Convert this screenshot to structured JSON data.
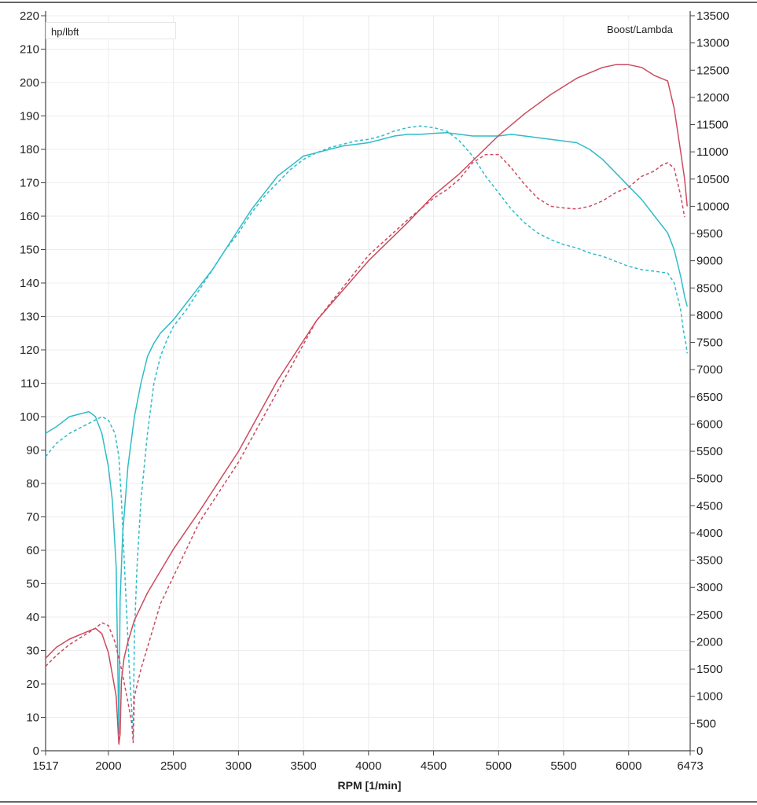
{
  "chart_data": {
    "type": "line",
    "xlabel": "RPM  [1/min]",
    "xlim": [
      1517,
      6473
    ],
    "x_ticks": [
      "1517",
      "2000",
      "2500",
      "3000",
      "3500",
      "4000",
      "4500",
      "5000",
      "5500",
      "6000",
      "6473"
    ],
    "y_left_label": "hp/lbft",
    "ylim_left": [
      0,
      220
    ],
    "y_left_ticks": [
      "0",
      "10",
      "20",
      "30",
      "40",
      "50",
      "60",
      "70",
      "80",
      "90",
      "100",
      "110",
      "120",
      "130",
      "140",
      "150",
      "160",
      "170",
      "180",
      "190",
      "200",
      "210",
      "220"
    ],
    "y_right_label": "Boost/Lambda",
    "ylim_right": [
      0,
      13500
    ],
    "y_right_ticks": [
      "0",
      "500",
      "1000",
      "1500",
      "2000",
      "2500",
      "3000",
      "3500",
      "4000",
      "4500",
      "5000",
      "5500",
      "6000",
      "6500",
      "7000",
      "7500",
      "8000",
      "8500",
      "9000",
      "9500",
      "10000",
      "10500",
      "11000",
      "11500",
      "12000",
      "12500",
      "13000",
      "13500"
    ],
    "grid": true,
    "series": [
      {
        "color": "#2fbcc8",
        "dash": "solid",
        "x": [
          1517,
          1600,
          1700,
          1850,
          1900,
          1950,
          2000,
          2030,
          2060,
          2080,
          2090,
          2110,
          2150,
          2200,
          2250,
          2300,
          2350,
          2400,
          2500,
          2600,
          2700,
          2800,
          2900,
          3000,
          3100,
          3200,
          3300,
          3400,
          3500,
          3600,
          3700,
          3800,
          3900,
          4000,
          4100,
          4200,
          4300,
          4400,
          4500,
          4600,
          4700,
          4800,
          4900,
          5000,
          5100,
          5200,
          5300,
          5400,
          5500,
          5600,
          5700,
          5800,
          5900,
          6000,
          6100,
          6200,
          6300,
          6350,
          6400,
          6430,
          6450
        ],
        "y": [
          95,
          97,
          100,
          101.5,
          100,
          95,
          85,
          75,
          55,
          5,
          45,
          65,
          85,
          100,
          110,
          118,
          122,
          125,
          129,
          134,
          139,
          144,
          150,
          156,
          162,
          167,
          172,
          175,
          178,
          179,
          180,
          181,
          181.5,
          182,
          183,
          184,
          184.5,
          184.5,
          184.8,
          185,
          184.5,
          184,
          184,
          184,
          184.5,
          184,
          183.5,
          183,
          182.5,
          182,
          180,
          177,
          173,
          169,
          165,
          160,
          155,
          150,
          142,
          136,
          133
        ]
      },
      {
        "color": "#2fbcc8",
        "dash": "dashed",
        "x": [
          1517,
          1600,
          1700,
          1800,
          1900,
          1950,
          2000,
          2050,
          2080,
          2100,
          2130,
          2160,
          2190,
          2200,
          2220,
          2250,
          2300,
          2350,
          2400,
          2450,
          2500,
          2600,
          2700,
          2800,
          2900,
          3000,
          3100,
          3200,
          3300,
          3400,
          3500,
          3600,
          3700,
          3800,
          3900,
          4000,
          4100,
          4200,
          4300,
          4400,
          4500,
          4600,
          4700,
          4800,
          4900,
          5000,
          5100,
          5200,
          5300,
          5400,
          5500,
          5600,
          5700,
          5800,
          5900,
          6000,
          6100,
          6200,
          6300,
          6350,
          6400,
          6420,
          6440,
          6450
        ],
        "y": [
          88,
          92,
          95,
          97,
          99,
          100,
          99,
          95,
          88,
          75,
          50,
          25,
          5,
          35,
          55,
          75,
          95,
          110,
          118,
          123,
          127,
          132,
          138,
          144,
          150,
          155,
          161,
          166,
          170,
          174,
          177,
          179,
          180.5,
          181.5,
          182.5,
          183,
          184,
          185.5,
          186.5,
          187,
          186.5,
          185.5,
          182.5,
          178,
          172,
          167,
          162,
          158,
          155,
          153,
          151.5,
          150.5,
          149,
          148,
          146.5,
          145,
          144,
          143.5,
          143,
          140,
          132,
          126,
          122,
          119
        ]
      },
      {
        "color": "#cc4a5e",
        "dash": "solid",
        "x": [
          1517,
          1600,
          1700,
          1800,
          1900,
          1950,
          2000,
          2030,
          2060,
          2080,
          2090,
          2100,
          2120,
          2150,
          2200,
          2300,
          2400,
          2500,
          2700,
          3000,
          3300,
          3600,
          4000,
          4300,
          4500,
          4700,
          5000,
          5200,
          5400,
          5600,
          5800,
          5900,
          6000,
          6100,
          6200,
          6250,
          6300,
          6350,
          6400,
          6430,
          6450
        ],
        "y": [
          1700,
          1900,
          2050,
          2150,
          2250,
          2150,
          1800,
          1400,
          1000,
          120,
          300,
          1300,
          1700,
          2000,
          2400,
          2900,
          3300,
          3700,
          4400,
          5500,
          6800,
          7900,
          9000,
          9700,
          10200,
          10600,
          11300,
          11700,
          12050,
          12350,
          12550,
          12600,
          12600,
          12550,
          12400,
          12350,
          12300,
          11800,
          11000,
          10500,
          10000
        ]
      },
      {
        "color": "#cc4a5e",
        "dash": "dashed",
        "x": [
          1517,
          1600,
          1700,
          1800,
          1900,
          1950,
          2000,
          2050,
          2100,
          2150,
          2180,
          2190,
          2200,
          2250,
          2300,
          2400,
          2500,
          2700,
          3000,
          3300,
          3600,
          4000,
          4300,
          4500,
          4600,
          4700,
          4800,
          4900,
          5000,
          5100,
          5200,
          5300,
          5400,
          5500,
          5600,
          5700,
          5800,
          5900,
          6000,
          6100,
          6200,
          6250,
          6300,
          6350,
          6400,
          6430
        ],
        "y": [
          1550,
          1750,
          1950,
          2100,
          2250,
          2350,
          2300,
          2000,
          1500,
          900,
          500,
          150,
          1000,
          1500,
          1900,
          2700,
          3200,
          4200,
          5300,
          6600,
          7900,
          9100,
          9750,
          10150,
          10300,
          10500,
          10800,
          10950,
          10950,
          10700,
          10400,
          10150,
          10000,
          9970,
          9950,
          10000,
          10100,
          10250,
          10350,
          10550,
          10650,
          10750,
          10800,
          10700,
          10200,
          9800
        ]
      }
    ]
  },
  "labels": {
    "legend_left": "hp/lbft",
    "legend_right": "Boost/Lambda",
    "xlabel": "RPM  [1/min]"
  }
}
